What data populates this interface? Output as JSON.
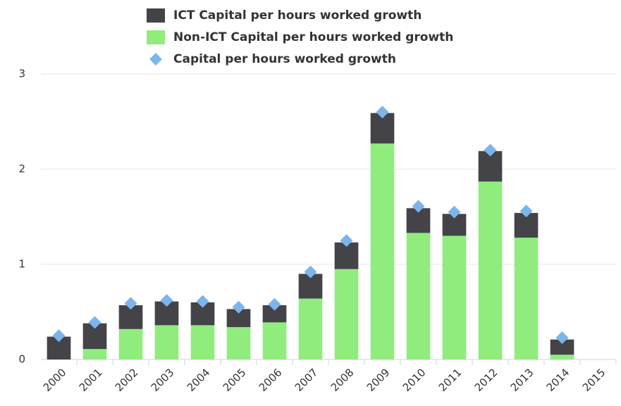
{
  "chart_data": {
    "type": "stacked_bar",
    "categories": [
      "2000",
      "2001",
      "2002",
      "2003",
      "2004",
      "2005",
      "2006",
      "2007",
      "2008",
      "2009",
      "2010",
      "2011",
      "2012",
      "2013",
      "2014",
      "2015"
    ],
    "series": [
      {
        "name": "ICT Capital per hours worked growth",
        "color": "#434348",
        "kind": "bar",
        "values": [
          0.24,
          0.27,
          0.25,
          0.25,
          0.24,
          0.19,
          0.18,
          0.26,
          0.28,
          0.32,
          0.26,
          0.23,
          0.32,
          0.26,
          0.16,
          null
        ]
      },
      {
        "name": "Non-ICT Capital per hours worked growth",
        "color": "#90ed7d",
        "kind": "bar",
        "values": [
          0,
          0.11,
          0.32,
          0.36,
          0.36,
          0.34,
          0.39,
          0.64,
          0.95,
          2.27,
          1.33,
          1.3,
          1.87,
          1.28,
          0.05,
          null
        ]
      },
      {
        "name": "Capital per hours worked growth",
        "color": "#7cb5ec",
        "kind": "marker",
        "values": [
          0.25,
          0.39,
          0.59,
          0.62,
          0.61,
          0.55,
          0.58,
          0.92,
          1.25,
          2.6,
          1.61,
          1.55,
          2.2,
          1.56,
          0.23,
          null
        ]
      }
    ],
    "ylim": [
      0,
      3
    ],
    "yticks": [
      0,
      1,
      2,
      3
    ],
    "grid": true,
    "legend": "top"
  }
}
